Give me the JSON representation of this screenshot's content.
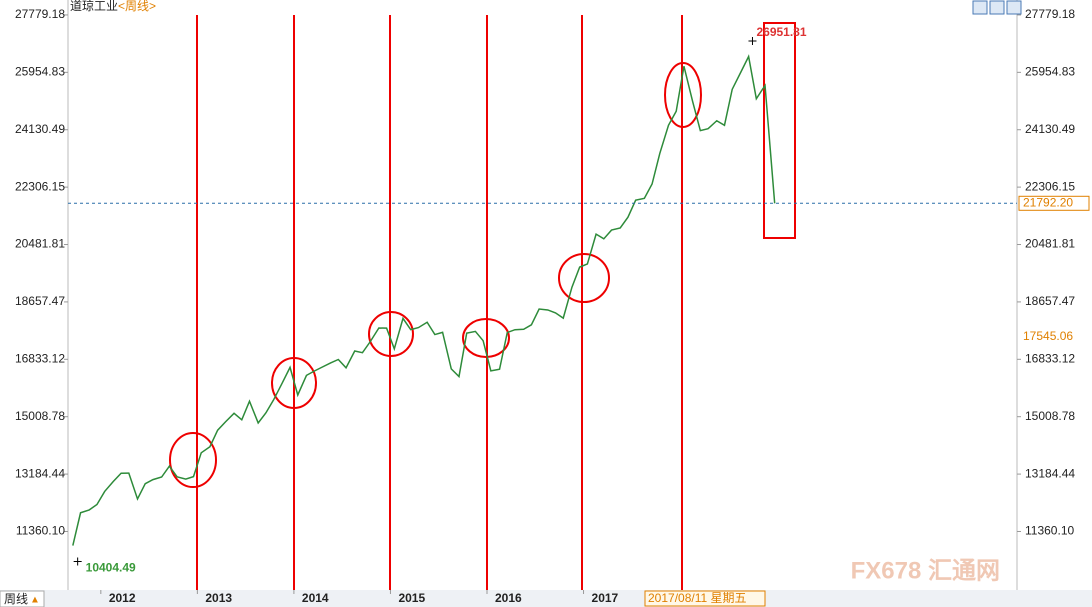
{
  "chart_data": {
    "type": "line",
    "title": "道琼工业",
    "subtitle": "<周线>",
    "period_button": "周线",
    "period_arrow": "▲",
    "cursor_label": "2017/08/11 星期五",
    "watermark": "FX678 汇通网",
    "x": [
      2011.71,
      2011.79,
      2011.88,
      2011.96,
      2012.04,
      2012.13,
      2012.21,
      2012.29,
      2012.38,
      2012.46,
      2012.54,
      2012.63,
      2012.71,
      2012.79,
      2012.88,
      2012.96,
      2013.04,
      2013.13,
      2013.21,
      2013.29,
      2013.38,
      2013.46,
      2013.54,
      2013.63,
      2013.71,
      2013.79,
      2013.88,
      2013.96,
      2014.04,
      2014.13,
      2014.21,
      2014.29,
      2014.38,
      2014.46,
      2014.54,
      2014.63,
      2014.71,
      2014.79,
      2014.88,
      2014.96,
      2015.04,
      2015.13,
      2015.21,
      2015.29,
      2015.38,
      2015.46,
      2015.54,
      2015.63,
      2015.71,
      2015.79,
      2015.88,
      2015.96,
      2016.04,
      2016.13,
      2016.21,
      2016.29,
      2016.38,
      2016.46,
      2016.54,
      2016.63,
      2016.71,
      2016.79,
      2016.88,
      2016.96,
      2017.04,
      2017.13,
      2017.21,
      2017.29,
      2017.38,
      2017.46,
      2017.54,
      2017.63,
      2017.71,
      2017.79,
      2017.88,
      2017.96,
      2018.04,
      2018.13,
      2018.21,
      2018.29,
      2018.38,
      2018.46,
      2018.54,
      2018.63,
      2018.71,
      2018.79,
      2018.88,
      2018.98
    ],
    "series": [
      {
        "color": "#2e8b3a",
        "values": [
          10913,
          11955,
          12046,
          12218,
          12633,
          12952,
          13212,
          13214,
          12393,
          12880,
          13009,
          13091,
          13437,
          13096,
          13026,
          13104,
          13861,
          14054,
          14579,
          14840,
          15116,
          14910,
          15500,
          14810,
          15130,
          15546,
          16086,
          16577,
          15699,
          16322,
          16458,
          16581,
          16717,
          16827,
          16563,
          17098,
          17043,
          17391,
          17828,
          17823,
          17165,
          18133,
          17776,
          17841,
          18011,
          17620,
          17690,
          16528,
          16285,
          17664,
          17720,
          17425,
          16466,
          16517,
          17685,
          17774,
          17787,
          17930,
          18432,
          18401,
          18308,
          18142,
          19124,
          19763,
          19864,
          20812,
          20663,
          20941,
          21009,
          21350,
          21891,
          21948,
          22405,
          23377,
          24272,
          24719,
          26149,
          25029,
          24103,
          24163,
          24416,
          24271,
          25415,
          25965,
          26458,
          25116,
          25538,
          21792.2
        ]
      }
    ],
    "xlim": [
      2011.66,
      2021.49
    ],
    "xticks": [
      2012,
      2013,
      2014,
      2015,
      2016,
      2017
    ],
    "ylim": [
      9500,
      28000
    ],
    "yticks": [
      27779.18,
      25954.83,
      24130.49,
      22306.15,
      20481.81,
      18657.47,
      16833.12,
      15008.78,
      13184.44,
      {
        "value": 11360.1,
        "label": "11360.10"
      }
    ],
    "high_mark": {
      "value": 26951.81,
      "x": 2018.75
    },
    "low_mark": {
      "value": 10404.49,
      "x": 2011.76
    },
    "last_price": {
      "value": 21792.2,
      "label": "21792.20"
    },
    "ref_price": 17545.06
  }
}
